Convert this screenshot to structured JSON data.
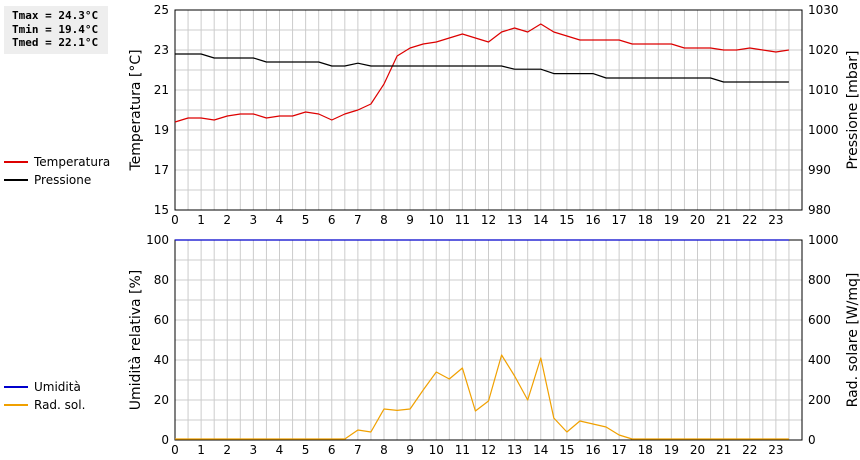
{
  "stats": {
    "tmax": "Tmax = 24.3°C",
    "tmin": "Tmin = 19.4°C",
    "tmed": "Tmed = 22.1°C"
  },
  "colors": {
    "temperature": "#dd0000",
    "pressure": "#000000",
    "humidity": "#0000cc",
    "radiation": "#f0a000",
    "grid": "#cccccc"
  },
  "legend_top": [
    {
      "label": "Temperatura",
      "color": "#dd0000"
    },
    {
      "label": "Pressione",
      "color": "#000000"
    }
  ],
  "legend_bottom": [
    {
      "label": "Umidità",
      "color": "#0000cc"
    },
    {
      "label": "Rad. sol.",
      "color": "#f0a000"
    }
  ],
  "chart_data": [
    {
      "type": "line",
      "xlabel": "",
      "ylabel": "Temperatura [°C]",
      "y2label": "Pressione [mbar]",
      "xlim": [
        0,
        24
      ],
      "ylim": [
        15,
        25
      ],
      "y2lim": [
        980,
        1030
      ],
      "x_ticks": [
        0,
        1,
        2,
        3,
        4,
        5,
        6,
        7,
        8,
        9,
        10,
        11,
        12,
        13,
        14,
        15,
        16,
        17,
        18,
        19,
        20,
        21,
        22,
        23
      ],
      "y_ticks": [
        15,
        17,
        19,
        21,
        23,
        25
      ],
      "y2_ticks": [
        980,
        990,
        1000,
        1010,
        1020,
        1030
      ],
      "grid": true,
      "series": [
        {
          "name": "Temperatura",
          "axis": "left",
          "color": "#dd0000",
          "x": [
            0,
            0.5,
            1,
            1.5,
            2,
            2.5,
            3,
            3.5,
            4,
            4.5,
            5,
            5.5,
            6,
            6.5,
            7,
            7.5,
            8,
            8.5,
            9,
            9.5,
            10,
            10.5,
            11,
            11.5,
            12,
            12.5,
            13,
            13.5,
            14,
            14.5,
            15,
            15.5,
            16,
            16.5,
            17,
            17.5,
            18,
            18.5,
            19,
            19.5,
            20,
            20.5,
            21,
            21.5,
            22,
            22.5,
            23,
            23.5
          ],
          "y": [
            19.4,
            19.6,
            19.6,
            19.5,
            19.7,
            19.8,
            19.8,
            19.6,
            19.7,
            19.7,
            19.9,
            19.8,
            19.5,
            19.8,
            20.0,
            20.3,
            21.3,
            22.7,
            23.1,
            23.3,
            23.4,
            23.6,
            23.8,
            23.6,
            23.4,
            23.9,
            24.1,
            23.9,
            24.3,
            23.9,
            23.7,
            23.5,
            23.5,
            23.5,
            23.5,
            23.3,
            23.3,
            23.3,
            23.3,
            23.1,
            23.1,
            23.1,
            23.0,
            23.0,
            23.1,
            23.0,
            22.9,
            23.0
          ]
        },
        {
          "name": "Pressione",
          "axis": "right",
          "color": "#000000",
          "x": [
            0,
            1,
            1.5,
            3,
            3.5,
            5.5,
            6,
            6.5,
            7,
            7.5,
            12.5,
            13,
            14,
            14.5,
            16,
            16.5,
            20.5,
            21,
            23.5
          ],
          "y": [
            1019,
            1019,
            1018,
            1018,
            1017,
            1017,
            1016,
            1016,
            1016.7,
            1016,
            1016,
            1015.2,
            1015.2,
            1014.1,
            1014.1,
            1013,
            1013,
            1012,
            1012
          ]
        }
      ]
    },
    {
      "type": "line",
      "xlabel": "",
      "ylabel": "Umidità relativa [%]",
      "y2label": "Rad. solare [W/mq]",
      "xlim": [
        0,
        24
      ],
      "ylim": [
        0,
        100
      ],
      "y2lim": [
        0,
        1000
      ],
      "x_ticks": [
        0,
        1,
        2,
        3,
        4,
        5,
        6,
        7,
        8,
        9,
        10,
        11,
        12,
        13,
        14,
        15,
        16,
        17,
        18,
        19,
        20,
        21,
        22,
        23
      ],
      "y_ticks": [
        0,
        20,
        40,
        60,
        80,
        100
      ],
      "y2_ticks": [
        0,
        200,
        400,
        600,
        800,
        1000
      ],
      "grid": true,
      "series": [
        {
          "name": "Umidità",
          "axis": "left",
          "color": "#0000cc",
          "x": [
            0,
            23.5
          ],
          "y": [
            100,
            100
          ]
        },
        {
          "name": "Rad. sol.",
          "axis": "right",
          "color": "#f0a000",
          "x": [
            0,
            0.5,
            1,
            1.5,
            2,
            2.5,
            3,
            3.5,
            4,
            4.5,
            5,
            5.5,
            6,
            6.5,
            7,
            7.5,
            8,
            8.5,
            9,
            9.5,
            10,
            10.5,
            11,
            11.5,
            12,
            12.5,
            13,
            13.5,
            14,
            14.5,
            15,
            15.5,
            16,
            16.5,
            17,
            17.5,
            18,
            18.5,
            19,
            19.5,
            20,
            20.5,
            21,
            21.5,
            22,
            22.5,
            23,
            23.5
          ],
          "y": [
            5,
            5,
            5,
            5,
            5,
            5,
            5,
            5,
            5,
            5,
            5,
            5,
            5,
            5,
            50,
            40,
            155,
            148,
            155,
            250,
            340,
            305,
            360,
            145,
            195,
            425,
            320,
            200,
            410,
            110,
            40,
            95,
            80,
            65,
            25,
            5,
            5,
            5,
            5,
            5,
            5,
            5,
            5,
            5,
            5,
            5,
            5,
            5
          ]
        }
      ]
    }
  ]
}
